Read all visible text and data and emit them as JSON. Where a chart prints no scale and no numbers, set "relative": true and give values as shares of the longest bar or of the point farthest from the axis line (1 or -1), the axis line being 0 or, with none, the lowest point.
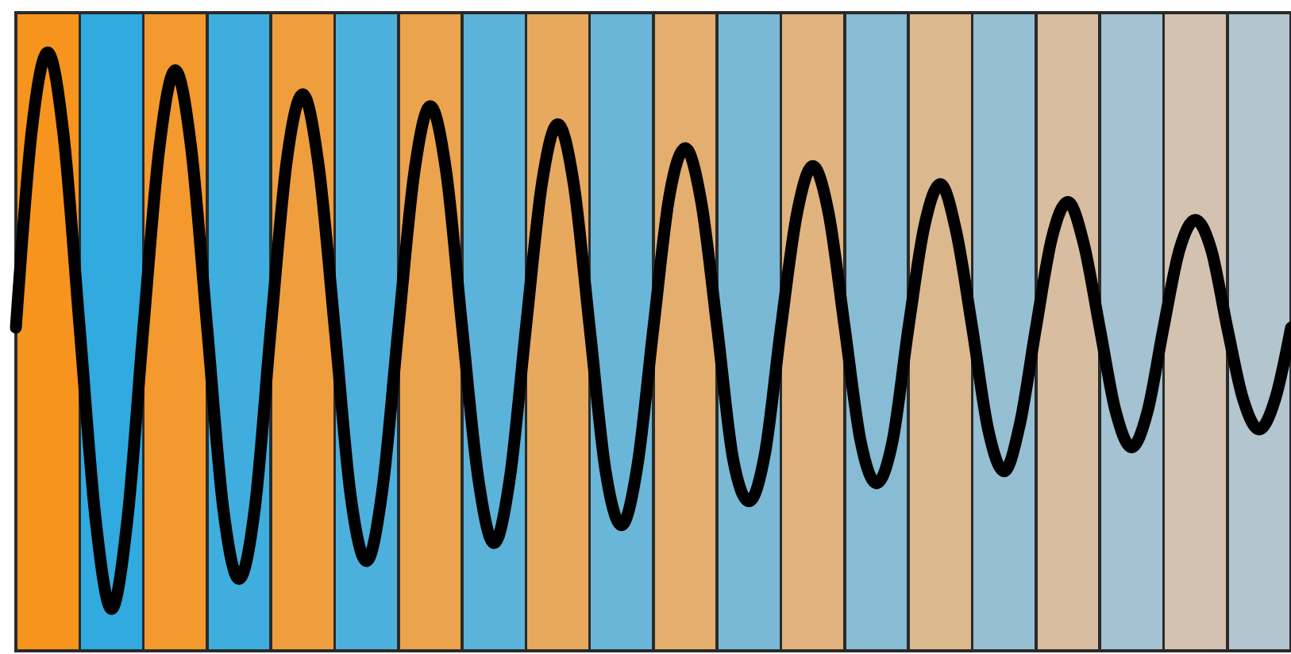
{
  "chart_data": {
    "type": "line",
    "relative": true,
    "categories": [
      null,
      null,
      null,
      null,
      null,
      null,
      null,
      null,
      null,
      null,
      null,
      null,
      null,
      null,
      null,
      null,
      null,
      null,
      null,
      null,
      null,
      null,
      null,
      null,
      null,
      null,
      null,
      null,
      null,
      null,
      null,
      null,
      null,
      null,
      null,
      null,
      null,
      null,
      null,
      null,
      null,
      null,
      null,
      null,
      null,
      null,
      null,
      null,
      null,
      null,
      null,
      null,
      null,
      null,
      null,
      null,
      null,
      null,
      null,
      null,
      null,
      null,
      null,
      null,
      null,
      null,
      null,
      null,
      null,
      null,
      null,
      null,
      null,
      null,
      null,
      null,
      null,
      null,
      null,
      null,
      null
    ],
    "series": [
      {
        "color": "#000000",
        "values": [
          0.54,
          0.87,
          1.0,
          0.86,
          0.54,
          0.22,
          0.07,
          0.22,
          0.54,
          0.84,
          0.97,
          0.84,
          0.54,
          0.24,
          0.12,
          0.24,
          0.54,
          0.82,
          0.93,
          0.81,
          0.54,
          0.26,
          0.15,
          0.27,
          0.54,
          0.8,
          0.91,
          0.8,
          0.54,
          0.29,
          0.18,
          0.29,
          0.54,
          0.78,
          0.88,
          0.78,
          0.54,
          0.3,
          0.21,
          0.31,
          0.54,
          0.76,
          0.84,
          0.75,
          0.54,
          0.32,
          0.25,
          0.33,
          0.54,
          0.73,
          0.81,
          0.73,
          0.54,
          0.35,
          0.28,
          0.35,
          0.54,
          0.71,
          0.78,
          0.7,
          0.54,
          0.37,
          0.3,
          0.38,
          0.54,
          0.69,
          0.75,
          0.68,
          0.54,
          0.4,
          0.34,
          0.4,
          0.54,
          0.67,
          0.72,
          0.67,
          0.54,
          0.42,
          0.37,
          0.42,
          0.54
        ]
      }
    ],
    "marker": "none",
    "line_style": "solid"
  }
}
